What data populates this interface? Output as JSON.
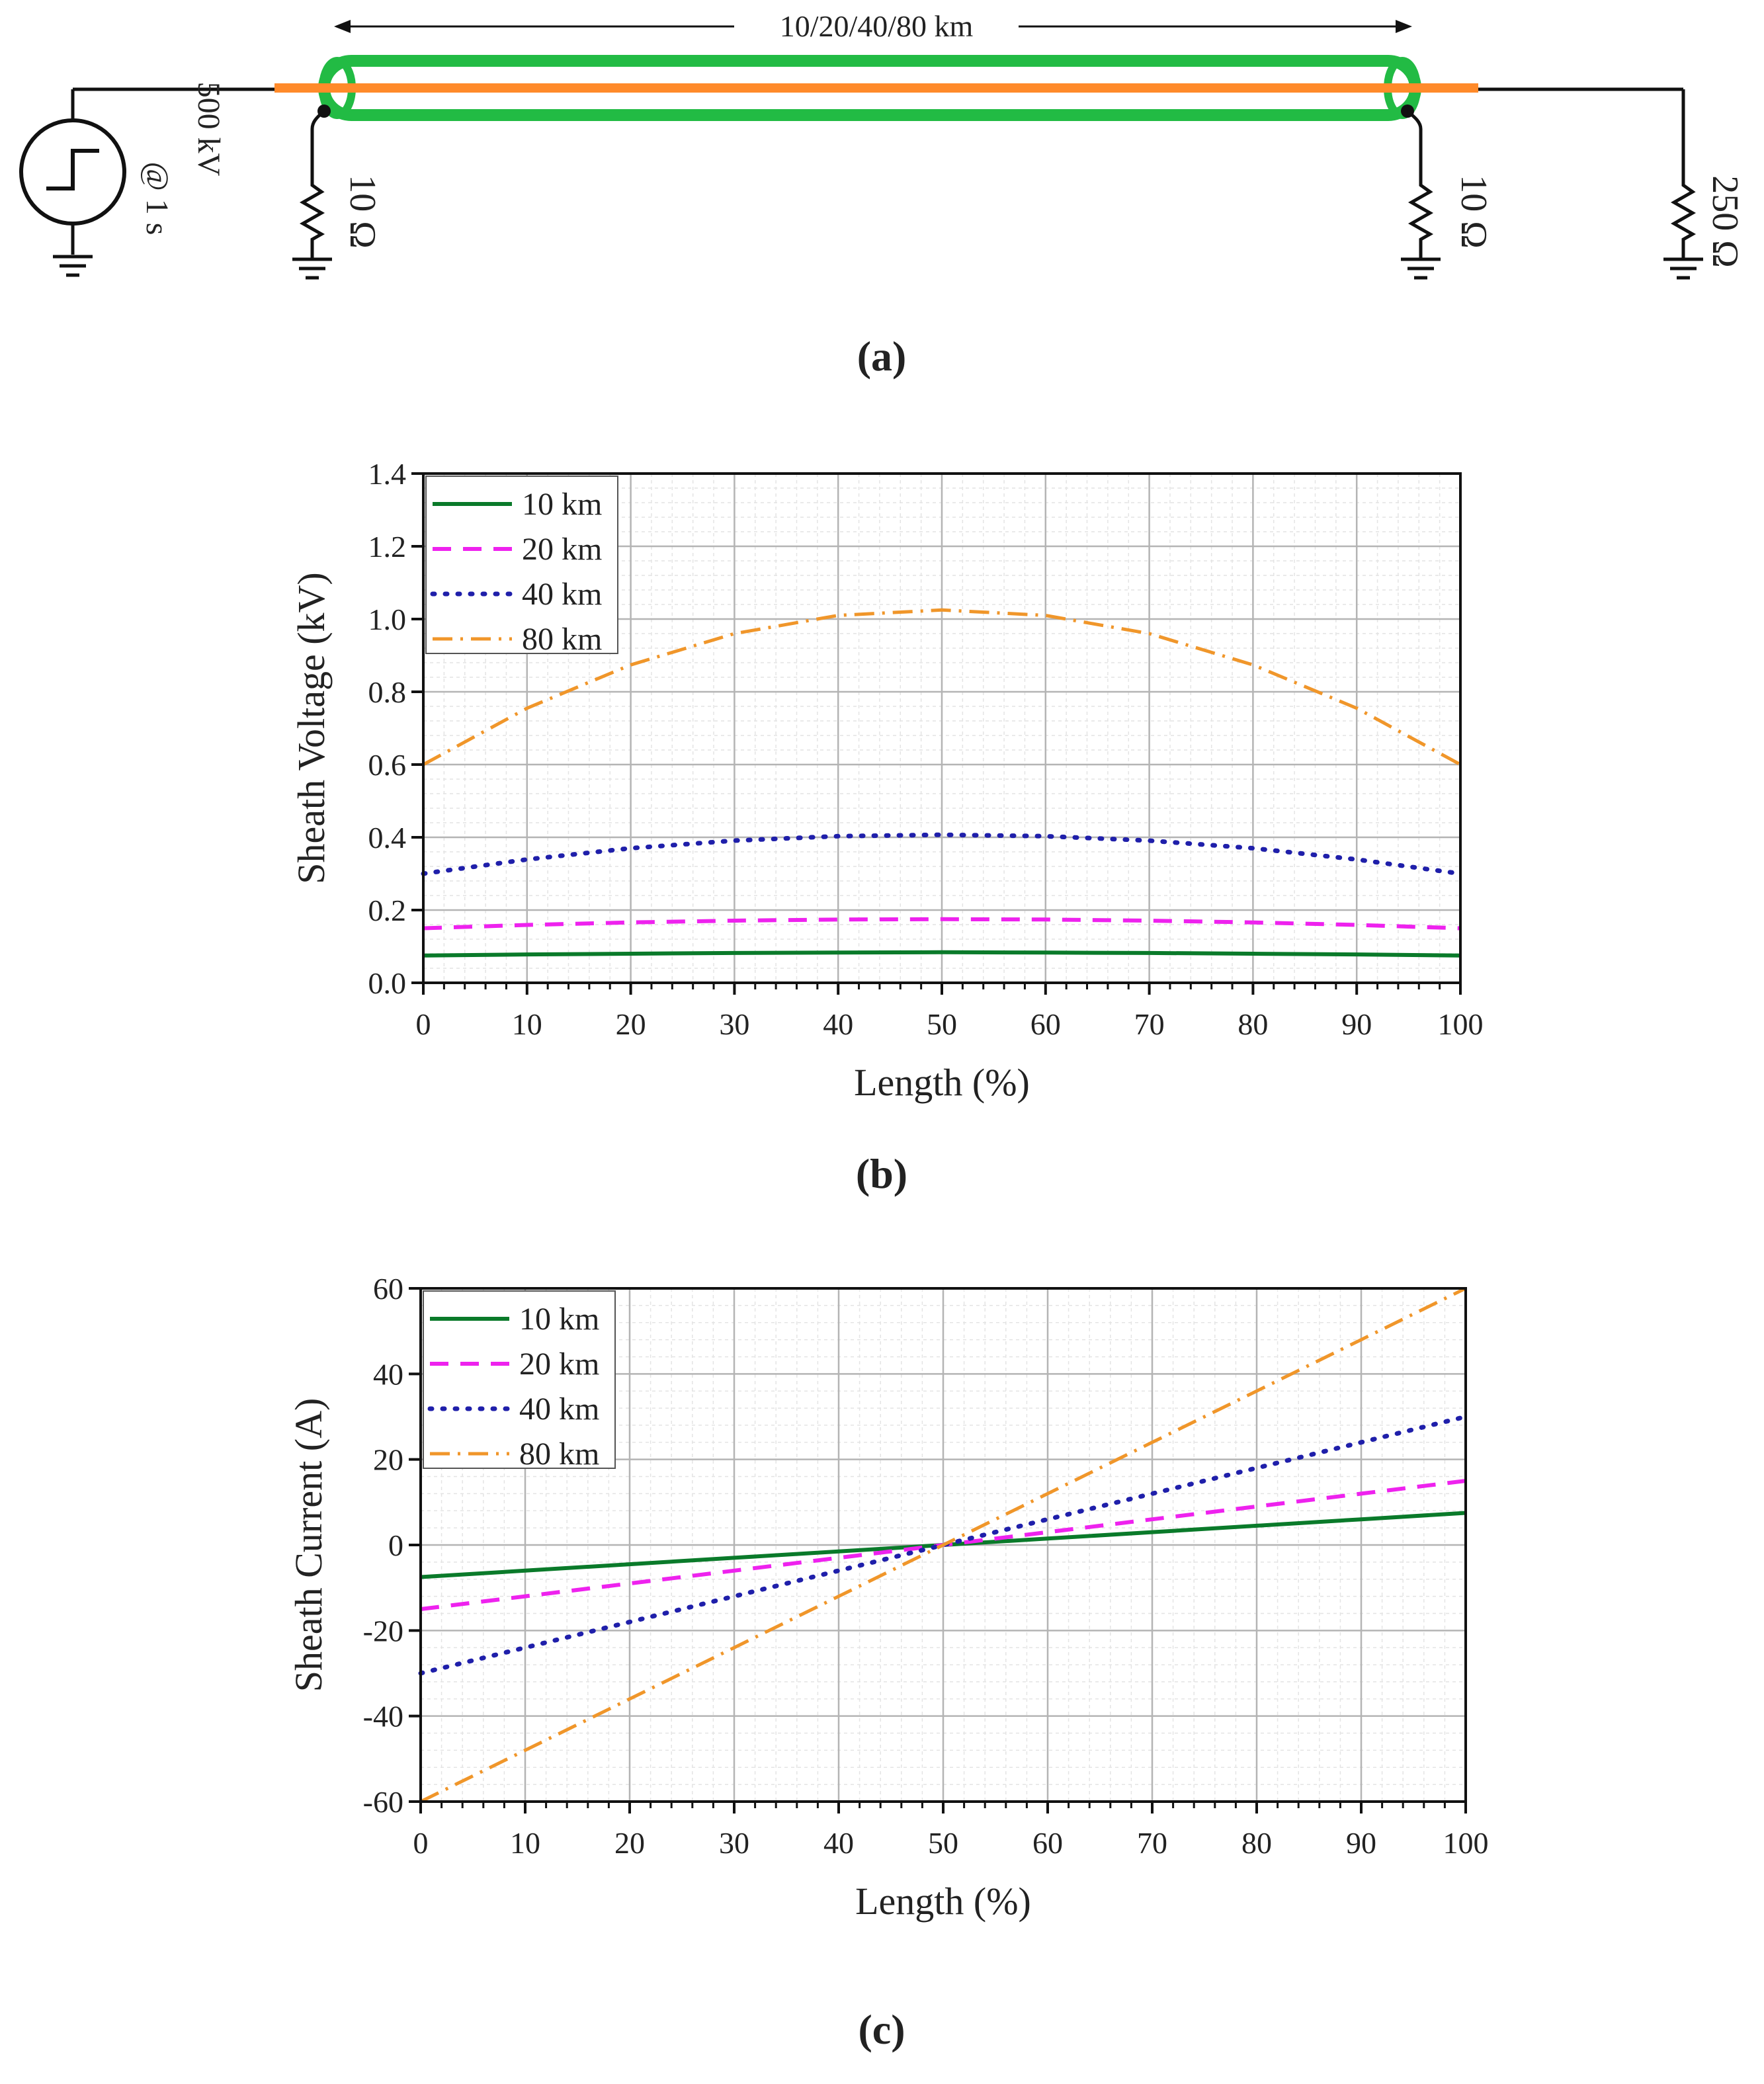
{
  "colors": {
    "green": "#0a7a2a",
    "magenta": "#ee22ee",
    "blue": "#1f1faa",
    "orange": "#f0962a",
    "cable_sheath": "#22bb44",
    "cable_core": "#ff8a2a",
    "wire": "#111111"
  },
  "schematic": {
    "length_label": "10/20/40/80 km",
    "source_label": "500 kV",
    "source_time": "@ 1 s",
    "left_resistor": "10 Ω",
    "right_resistor": "10 Ω",
    "load_resistor": "250 Ω",
    "caption": "(a)"
  },
  "legend_entries": [
    "10 km",
    "20 km",
    "40 km",
    "80 km"
  ],
  "chart_data": [
    {
      "type": "line",
      "caption": "(b)",
      "xlabel": "Length (%)",
      "ylabel": "Sheath Voltage (kV)",
      "xlim": [
        0,
        100
      ],
      "ylim": [
        0,
        1.4
      ],
      "xticks": [
        "0",
        "10",
        "20",
        "30",
        "40",
        "50",
        "60",
        "70",
        "80",
        "90",
        "100"
      ],
      "yticks": [
        "0.0",
        "0.2",
        "0.4",
        "0.6",
        "0.8",
        "1.0",
        "1.2",
        "1.4"
      ],
      "x": [
        0,
        10,
        20,
        30,
        40,
        50,
        60,
        70,
        80,
        90,
        100
      ],
      "series": [
        {
          "name": "10 km",
          "values": [
            0.075,
            0.078,
            0.08,
            0.082,
            0.083,
            0.084,
            0.083,
            0.082,
            0.08,
            0.078,
            0.075
          ]
        },
        {
          "name": "20 km",
          "values": [
            0.15,
            0.159,
            0.166,
            0.171,
            0.174,
            0.175,
            0.174,
            0.171,
            0.166,
            0.159,
            0.15
          ]
        },
        {
          "name": "40 km",
          "values": [
            0.3,
            0.339,
            0.37,
            0.391,
            0.403,
            0.407,
            0.403,
            0.391,
            0.37,
            0.339,
            0.3
          ]
        },
        {
          "name": "80 km",
          "values": [
            0.6,
            0.755,
            0.874,
            0.96,
            1.01,
            1.025,
            1.01,
            0.96,
            0.874,
            0.755,
            0.6
          ]
        }
      ]
    },
    {
      "type": "line",
      "caption": "(c)",
      "xlabel": "Length (%)",
      "ylabel": "Sheath Current (A)",
      "xlim": [
        0,
        100
      ],
      "ylim": [
        -60,
        60
      ],
      "xticks": [
        "0",
        "10",
        "20",
        "30",
        "40",
        "50",
        "60",
        "70",
        "80",
        "90",
        "100"
      ],
      "yticks": [
        "-60",
        "-40",
        "-20",
        "0",
        "20",
        "40",
        "60"
      ],
      "x": [
        0,
        10,
        20,
        30,
        40,
        50,
        60,
        70,
        80,
        90,
        100
      ],
      "series": [
        {
          "name": "10 km",
          "values": [
            -7.5,
            -6,
            -4.5,
            -3,
            -1.5,
            0,
            1.5,
            3,
            4.5,
            6,
            7.5
          ]
        },
        {
          "name": "20 km",
          "values": [
            -15,
            -12,
            -9,
            -6,
            -3,
            0,
            3,
            6,
            9,
            12,
            15
          ]
        },
        {
          "name": "40 km",
          "values": [
            -30,
            -24,
            -18,
            -12,
            -6,
            0,
            6,
            12,
            18,
            24,
            30
          ]
        },
        {
          "name": "80 km",
          "values": [
            -60,
            -48,
            -36,
            -24,
            -12,
            0,
            12,
            24,
            36,
            48,
            60
          ]
        }
      ]
    }
  ]
}
